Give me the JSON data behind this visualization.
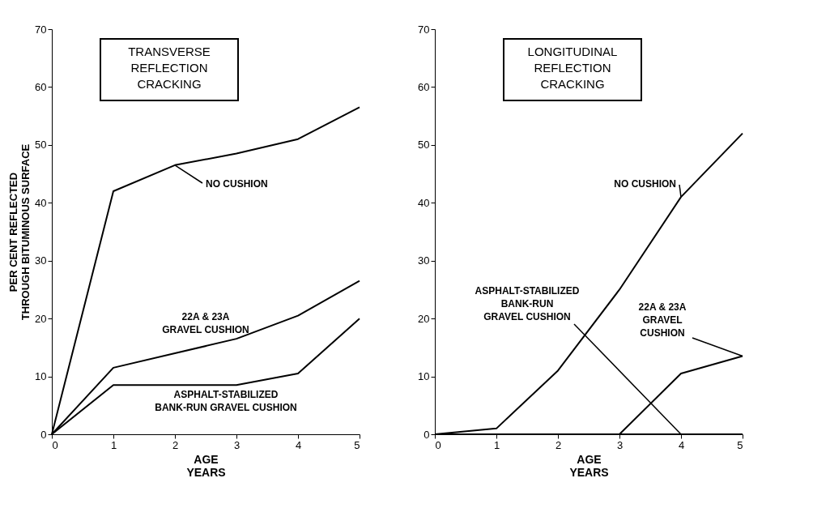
{
  "chart_data": [
    {
      "type": "line",
      "title": "TRANSVERSE\nREFLECTION\nCRACKING",
      "xlabel": "AGE\nYEARS",
      "ylabel": "PER CENT REFLECTED\nTHROUGH BITUMINOUS SURFACE",
      "x": [
        0,
        1,
        2,
        3,
        4,
        5
      ],
      "xlim": [
        0,
        5
      ],
      "ylim": [
        0,
        70
      ],
      "xticks": [
        0,
        1,
        2,
        3,
        4,
        5
      ],
      "yticks": [
        0,
        10,
        20,
        30,
        40,
        50,
        60,
        70
      ],
      "grid": false,
      "legend": false,
      "marker": "none",
      "line_style": "solid",
      "series": [
        {
          "name": "NO CUSHION",
          "color": "#000000",
          "values": [
            0,
            42,
            46.5,
            48.5,
            51,
            56.5
          ]
        },
        {
          "name": "22A & 23A\nGRAVEL CUSHION",
          "color": "#000000",
          "values": [
            0,
            11.5,
            14,
            16.5,
            20.5,
            26.5
          ]
        },
        {
          "name": "ASPHALT-STABILIZED\nBANK-RUN GRAVEL CUSHION",
          "color": "#000000",
          "values": [
            0,
            8.5,
            8.5,
            8.5,
            10.5,
            20
          ]
        }
      ]
    },
    {
      "type": "line",
      "title": "LONGITUDINAL\nREFLECTION\nCRACKING",
      "xlabel": "AGE\nYEARS",
      "x": [
        0,
        1,
        2,
        3,
        4,
        5
      ],
      "xlim": [
        0,
        5
      ],
      "ylim": [
        0,
        70
      ],
      "xticks": [
        0,
        1,
        2,
        3,
        4,
        5
      ],
      "yticks": [
        0,
        10,
        20,
        30,
        40,
        50,
        60,
        70
      ],
      "grid": false,
      "legend": false,
      "marker": "none",
      "line_style": "solid",
      "series": [
        {
          "name": "NO CUSHION",
          "color": "#000000",
          "values": [
            0,
            1,
            11,
            25,
            41,
            52
          ]
        },
        {
          "name": "ASPHALT-STABILIZED\nBANK-RUN\nGRAVEL CUSHION",
          "color": "#000000",
          "values": [
            0,
            0,
            0,
            0,
            0,
            0
          ]
        },
        {
          "name": "22A & 23A\nGRAVEL\nCUSHION",
          "color": "#000000",
          "x": [
            3,
            4,
            5
          ],
          "values": [
            0,
            10.5,
            13.5
          ]
        }
      ]
    }
  ]
}
